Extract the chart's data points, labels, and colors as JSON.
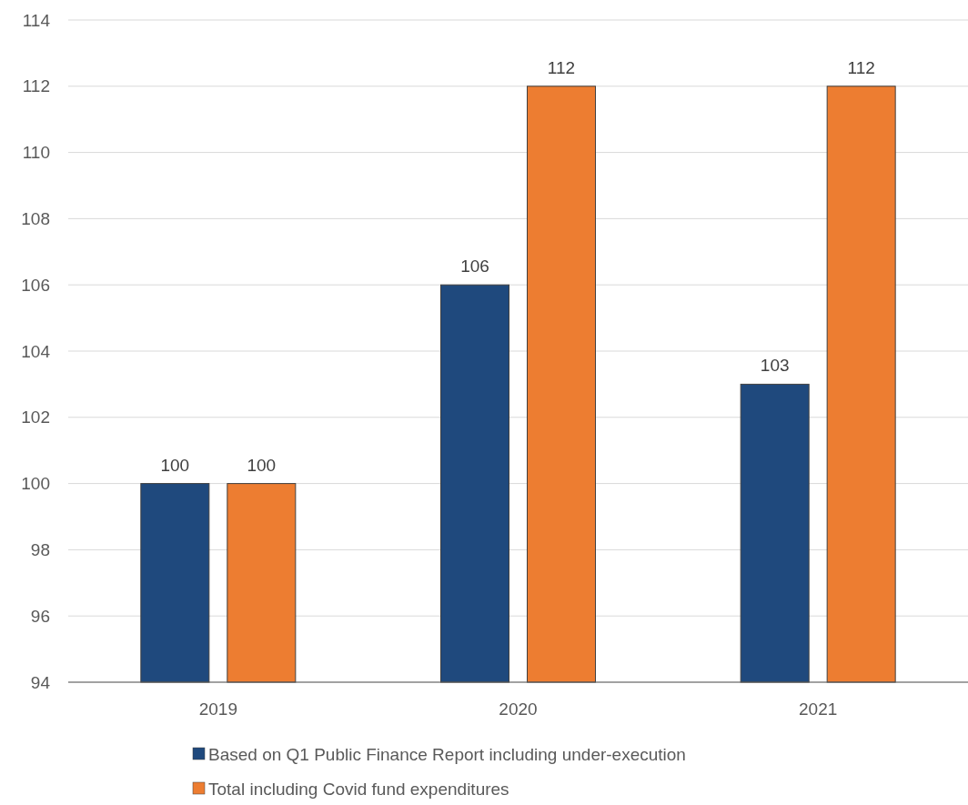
{
  "chart_data": {
    "type": "bar",
    "categories": [
      "2019",
      "2020",
      "2021"
    ],
    "series": [
      {
        "name": "Based on Q1 Public Finance Report including under-execution",
        "color": "#1f497d",
        "values": [
          100,
          106,
          103
        ]
      },
      {
        "name": "Total including Covid fund expenditures",
        "color": "#ed7d31",
        "values": [
          100,
          112,
          112
        ]
      }
    ],
    "ylim": [
      94,
      114
    ],
    "yticks": [
      94,
      96,
      98,
      100,
      102,
      104,
      106,
      108,
      110,
      112,
      114
    ],
    "grid": "y",
    "data_labels": true,
    "legend": "bottom"
  }
}
